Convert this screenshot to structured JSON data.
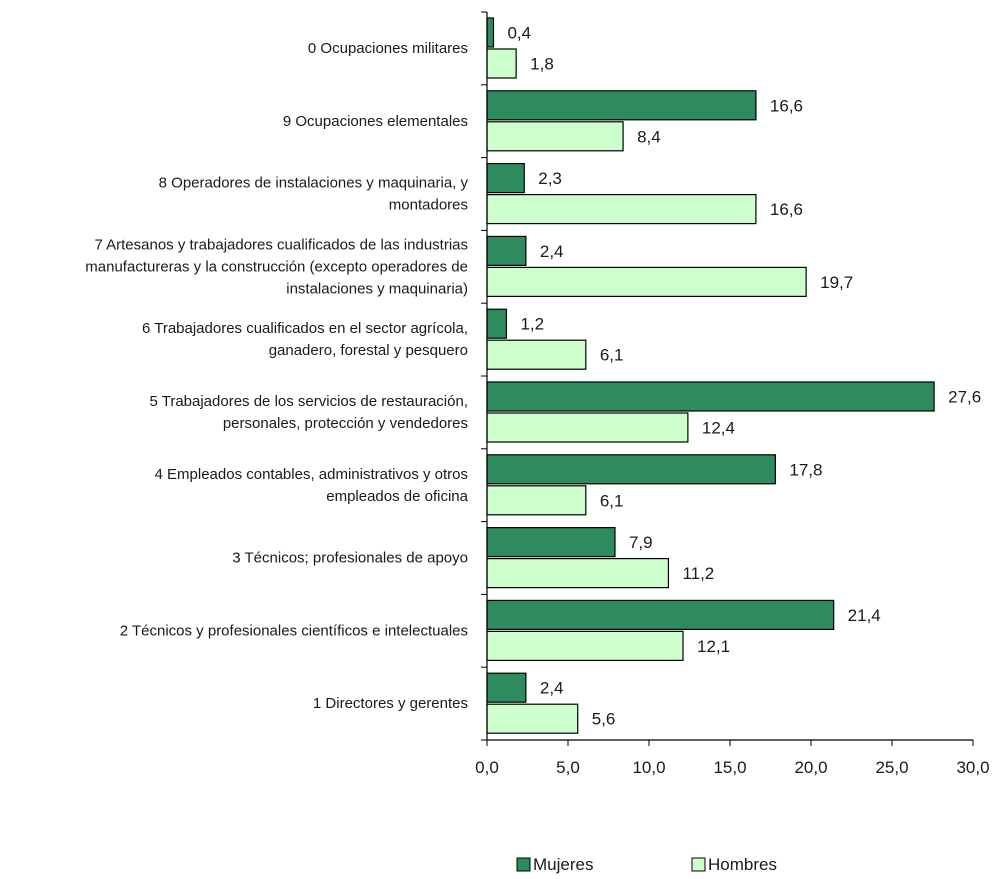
{
  "chart_data": {
    "type": "bar",
    "orientation": "horizontal",
    "title": "",
    "xlabel": "",
    "ylabel": "",
    "xlim": [
      0,
      30
    ],
    "ticks": [
      "0,0",
      "5,0",
      "10,0",
      "15,0",
      "20,0",
      "25,0",
      "30,0"
    ],
    "tick_values": [
      0,
      5,
      10,
      15,
      20,
      25,
      30
    ],
    "grid": false,
    "legend_position": "bottom",
    "categories": [
      [
        "0 Ocupaciones militares"
      ],
      [
        "9 Ocupaciones elementales"
      ],
      [
        "8 Operadores de instalaciones y maquinaria, y",
        "montadores"
      ],
      [
        "7 Artesanos y trabajadores cualificados de las industrias",
        "manufactureras y la construcción (excepto operadores de",
        "instalaciones y maquinaria)"
      ],
      [
        "6 Trabajadores cualificados en el sector agrícola,",
        "ganadero, forestal y pesquero"
      ],
      [
        "5 Trabajadores de los servicios de restauración,",
        "personales, protección y vendedores"
      ],
      [
        "4 Empleados contables, administrativos y otros",
        "empleados de oficina"
      ],
      [
        "3 Técnicos; profesionales de apoyo"
      ],
      [
        "2 Técnicos y profesionales científicos e intelectuales"
      ],
      [
        "1 Directores y gerentes"
      ]
    ],
    "series": [
      {
        "name": "Mujeres",
        "color": "#2e8b5e",
        "values": [
          0.4,
          16.6,
          2.3,
          2.4,
          1.2,
          27.6,
          17.8,
          7.9,
          21.4,
          2.4
        ],
        "labels": [
          "0,4",
          "16,6",
          "2,3",
          "2,4",
          "1,2",
          "27,6",
          "17,8",
          "7,9",
          "21,4",
          "2,4"
        ]
      },
      {
        "name": "Hombres",
        "color": "#ccffcc",
        "values": [
          1.8,
          8.4,
          16.6,
          19.7,
          6.1,
          12.4,
          6.1,
          11.2,
          12.1,
          5.6
        ],
        "labels": [
          "1,8",
          "8,4",
          "16,6",
          "19,7",
          "6,1",
          "12,4",
          "6,1",
          "11,2",
          "12,1",
          "5,6"
        ]
      }
    ]
  }
}
